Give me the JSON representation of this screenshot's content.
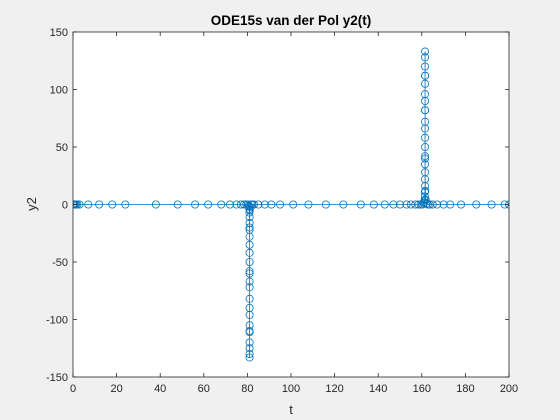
{
  "chart_data": {
    "type": "line",
    "title": "ODE15s van der Pol y2(t)",
    "xlabel": "t",
    "ylabel": "y2",
    "xlim": [
      0,
      200
    ],
    "ylim": [
      -150,
      150
    ],
    "xticks": [
      0,
      20,
      40,
      60,
      80,
      100,
      120,
      140,
      160,
      180,
      200
    ],
    "yticks": [
      -150,
      -100,
      -50,
      0,
      50,
      100,
      150
    ],
    "grid": false,
    "marker": "circle",
    "series": [
      {
        "line_color": "#0072bd",
        "x": [
          0,
          0.2,
          0.5,
          0.9,
          1.4,
          2,
          3,
          7,
          12,
          18,
          24,
          38,
          48,
          56,
          62,
          68,
          72,
          75,
          77,
          78.5,
          79.5,
          80.2,
          80.6,
          80.8,
          80.9,
          80.95,
          81,
          81,
          81,
          81,
          81,
          81,
          81,
          81,
          81,
          81,
          81,
          81,
          81,
          81,
          81,
          81,
          81,
          81,
          81,
          81,
          81,
          81,
          81.1,
          81.3,
          81.7,
          82.3,
          83,
          85,
          88,
          91,
          95,
          101,
          108,
          116,
          124,
          132,
          138,
          143,
          147,
          150,
          153,
          155,
          157,
          158.5,
          159.5,
          160.3,
          160.8,
          161.1,
          161.3,
          161.4,
          161.45,
          161.5,
          161.5,
          161.5,
          161.5,
          161.5,
          161.5,
          161.5,
          161.5,
          161.5,
          161.5,
          161.5,
          161.5,
          161.5,
          161.5,
          161.5,
          161.5,
          161.5,
          161.5,
          161.5,
          161.5,
          161.6,
          161.8,
          162.2,
          162.8,
          163.6,
          165,
          167,
          170,
          173,
          178,
          185,
          192,
          198,
          200
        ],
        "y": [
          0,
          0,
          0,
          0,
          0,
          0,
          0,
          0,
          0,
          0,
          0,
          0,
          0,
          0,
          0,
          0,
          0,
          0,
          0,
          0,
          0,
          0,
          -1,
          -2,
          -4,
          -7,
          -11,
          -16,
          -22,
          -28,
          -35,
          -42,
          -50,
          -58,
          -67,
          -72,
          -82,
          -90,
          -96,
          -105,
          -111,
          -120,
          -125,
          -130,
          -133,
          -110,
          -60,
          -20,
          -5,
          -2,
          0,
          0,
          0,
          0,
          0,
          0,
          0,
          0,
          0,
          0,
          0,
          0,
          0,
          0,
          0,
          0,
          0,
          0,
          0,
          0,
          0,
          0,
          1,
          2,
          4,
          7,
          11,
          16,
          22,
          28,
          35,
          42,
          50,
          58,
          66,
          72,
          82,
          90,
          96,
          105,
          112,
          120,
          128,
          133,
          112,
          82,
          40,
          12,
          4,
          1,
          0,
          0,
          0,
          0,
          0,
          0,
          0,
          0,
          0,
          0,
          0
        ]
      }
    ]
  }
}
